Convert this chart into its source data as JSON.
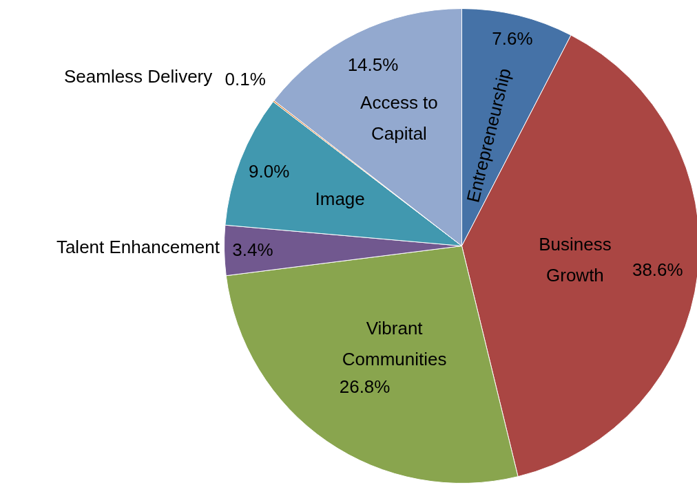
{
  "chart_data": {
    "type": "pie",
    "categories": [
      "Entrepreneurship",
      "Business Growth",
      "Vibrant Communities",
      "Talent Enhancement",
      "Image",
      "Seamless Delivery",
      "Access to Capital"
    ],
    "values": [
      7.6,
      38.6,
      26.8,
      3.4,
      9.0,
      0.1,
      14.5
    ],
    "colors": [
      "#4572a7",
      "#aa4643",
      "#89a54e",
      "#71588f",
      "#4198af",
      "#db843d",
      "#93a9cf"
    ],
    "value_labels": [
      "7.6%",
      "38.6%",
      "26.8%",
      "3.4%",
      "9.0%",
      "0.1%",
      "14.5%"
    ]
  }
}
